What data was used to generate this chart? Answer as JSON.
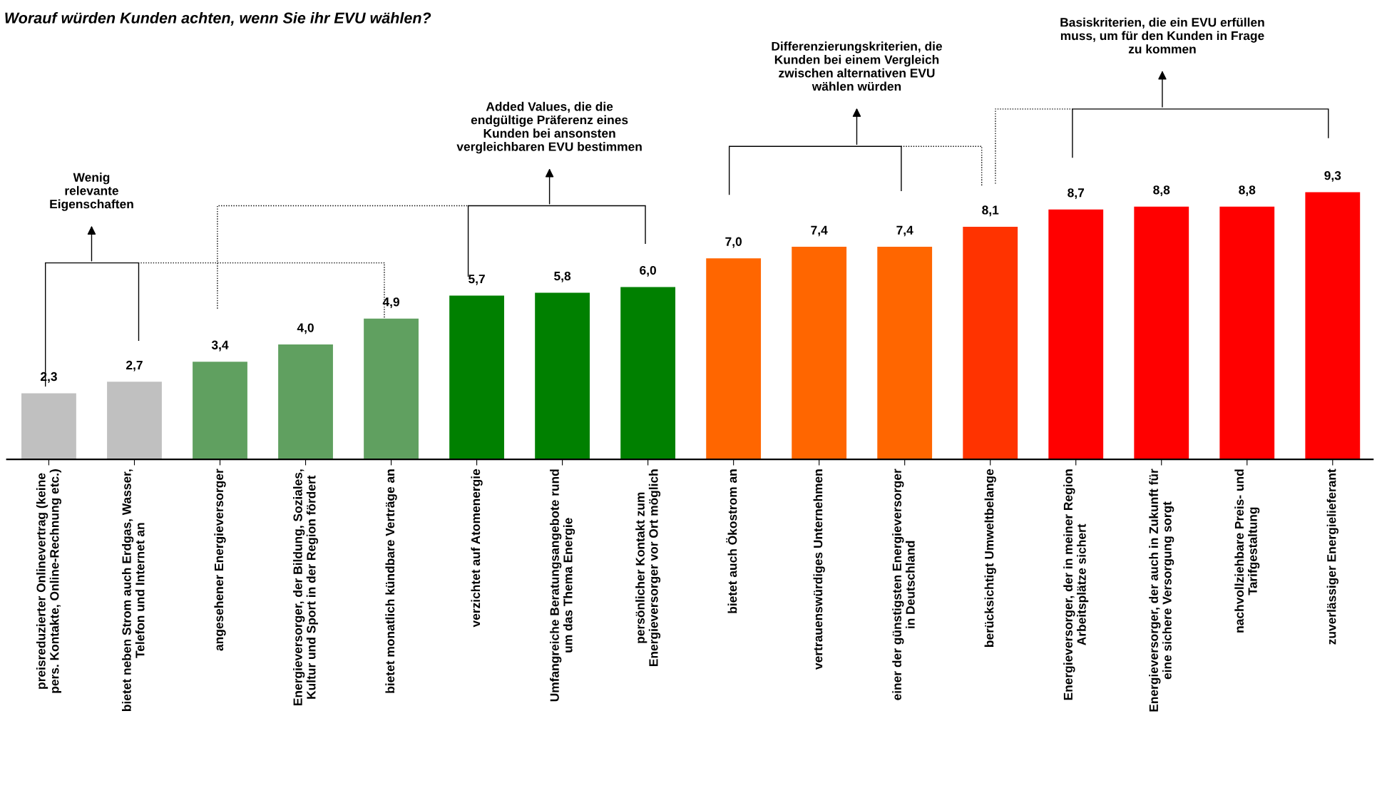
{
  "chart_data": {
    "type": "bar",
    "title": "Worauf würden Kunden achten, wenn Sie ihr EVU wählen?",
    "categories": [
      "preisreduzierter Onlinevertrag (keine\npers. Kontakte, Online-Rechnung etc.)",
      "bietet neben Strom auch Erdgas, Wasser,\nTelefon und Internet an",
      "angesehener Energieversorger",
      "Energieversorger, der Bildung, Soziales,\nKultur und Sport in der Region fördert",
      "bietet monatlich kündbare Verträge an",
      "verzichtet auf Atomenergie",
      "Umfangreiche Beratungsangebote rund\num das Thema Energie",
      "persönlicher Kontakt zum\nEnergieversorger vor Ort möglich",
      "bietet auch Ökostrom an",
      "vertrauenswürdiges Unternehmen",
      "einer der günstigsten Energieversorger\nin Deutschland",
      "berücksichtigt Umweltbelange",
      "Energieversorger, der in meiner Region\nArbeitsplätze sichert",
      "Energieversorger, der auch in Zukunft für\neine sichere Versorgung sorgt",
      "nachvollziehbare Preis- und\nTarifgestaltung",
      "zuverlässiger Energielieferant"
    ],
    "values": [
      2.3,
      2.7,
      3.4,
      4.0,
      4.9,
      5.7,
      5.8,
      6.0,
      7.0,
      7.4,
      7.4,
      8.1,
      8.7,
      8.8,
      8.8,
      9.3
    ],
    "colors": [
      "#c0c0c0",
      "#c0c0c0",
      "#60a060",
      "#60a060",
      "#60a060",
      "#008000",
      "#008000",
      "#008000",
      "#ff6600",
      "#ff6600",
      "#ff6600",
      "#ff3300",
      "#ff0000",
      "#ff0000",
      "#ff0000",
      "#ff0000"
    ],
    "value_labels": [
      "2,3",
      "2,7",
      "3,4",
      "4,0",
      "4,9",
      "5,7",
      "5,8",
      "6,0",
      "7,0",
      "7,4",
      "7,4",
      "8,1",
      "8,7",
      "8,8",
      "8,8",
      "9,3"
    ],
    "annotations": [
      "Wenig\nrelevante\nEigenschaften",
      "Added Values, die die\nendgültige Präferenz eines\nKunden bei ansonsten\nvergleichbaren EVU bestimmen",
      "Differenzierungskriterien, die\nKunden bei einem Vergleich\nzwischen alternativen EVU\nwählen würden",
      "Basiskriterien, die ein EVU erfüllen\nmuss, um für den Kunden in Frage\nzu kommen"
    ],
    "relative": false,
    "grid": false,
    "legend": false
  }
}
